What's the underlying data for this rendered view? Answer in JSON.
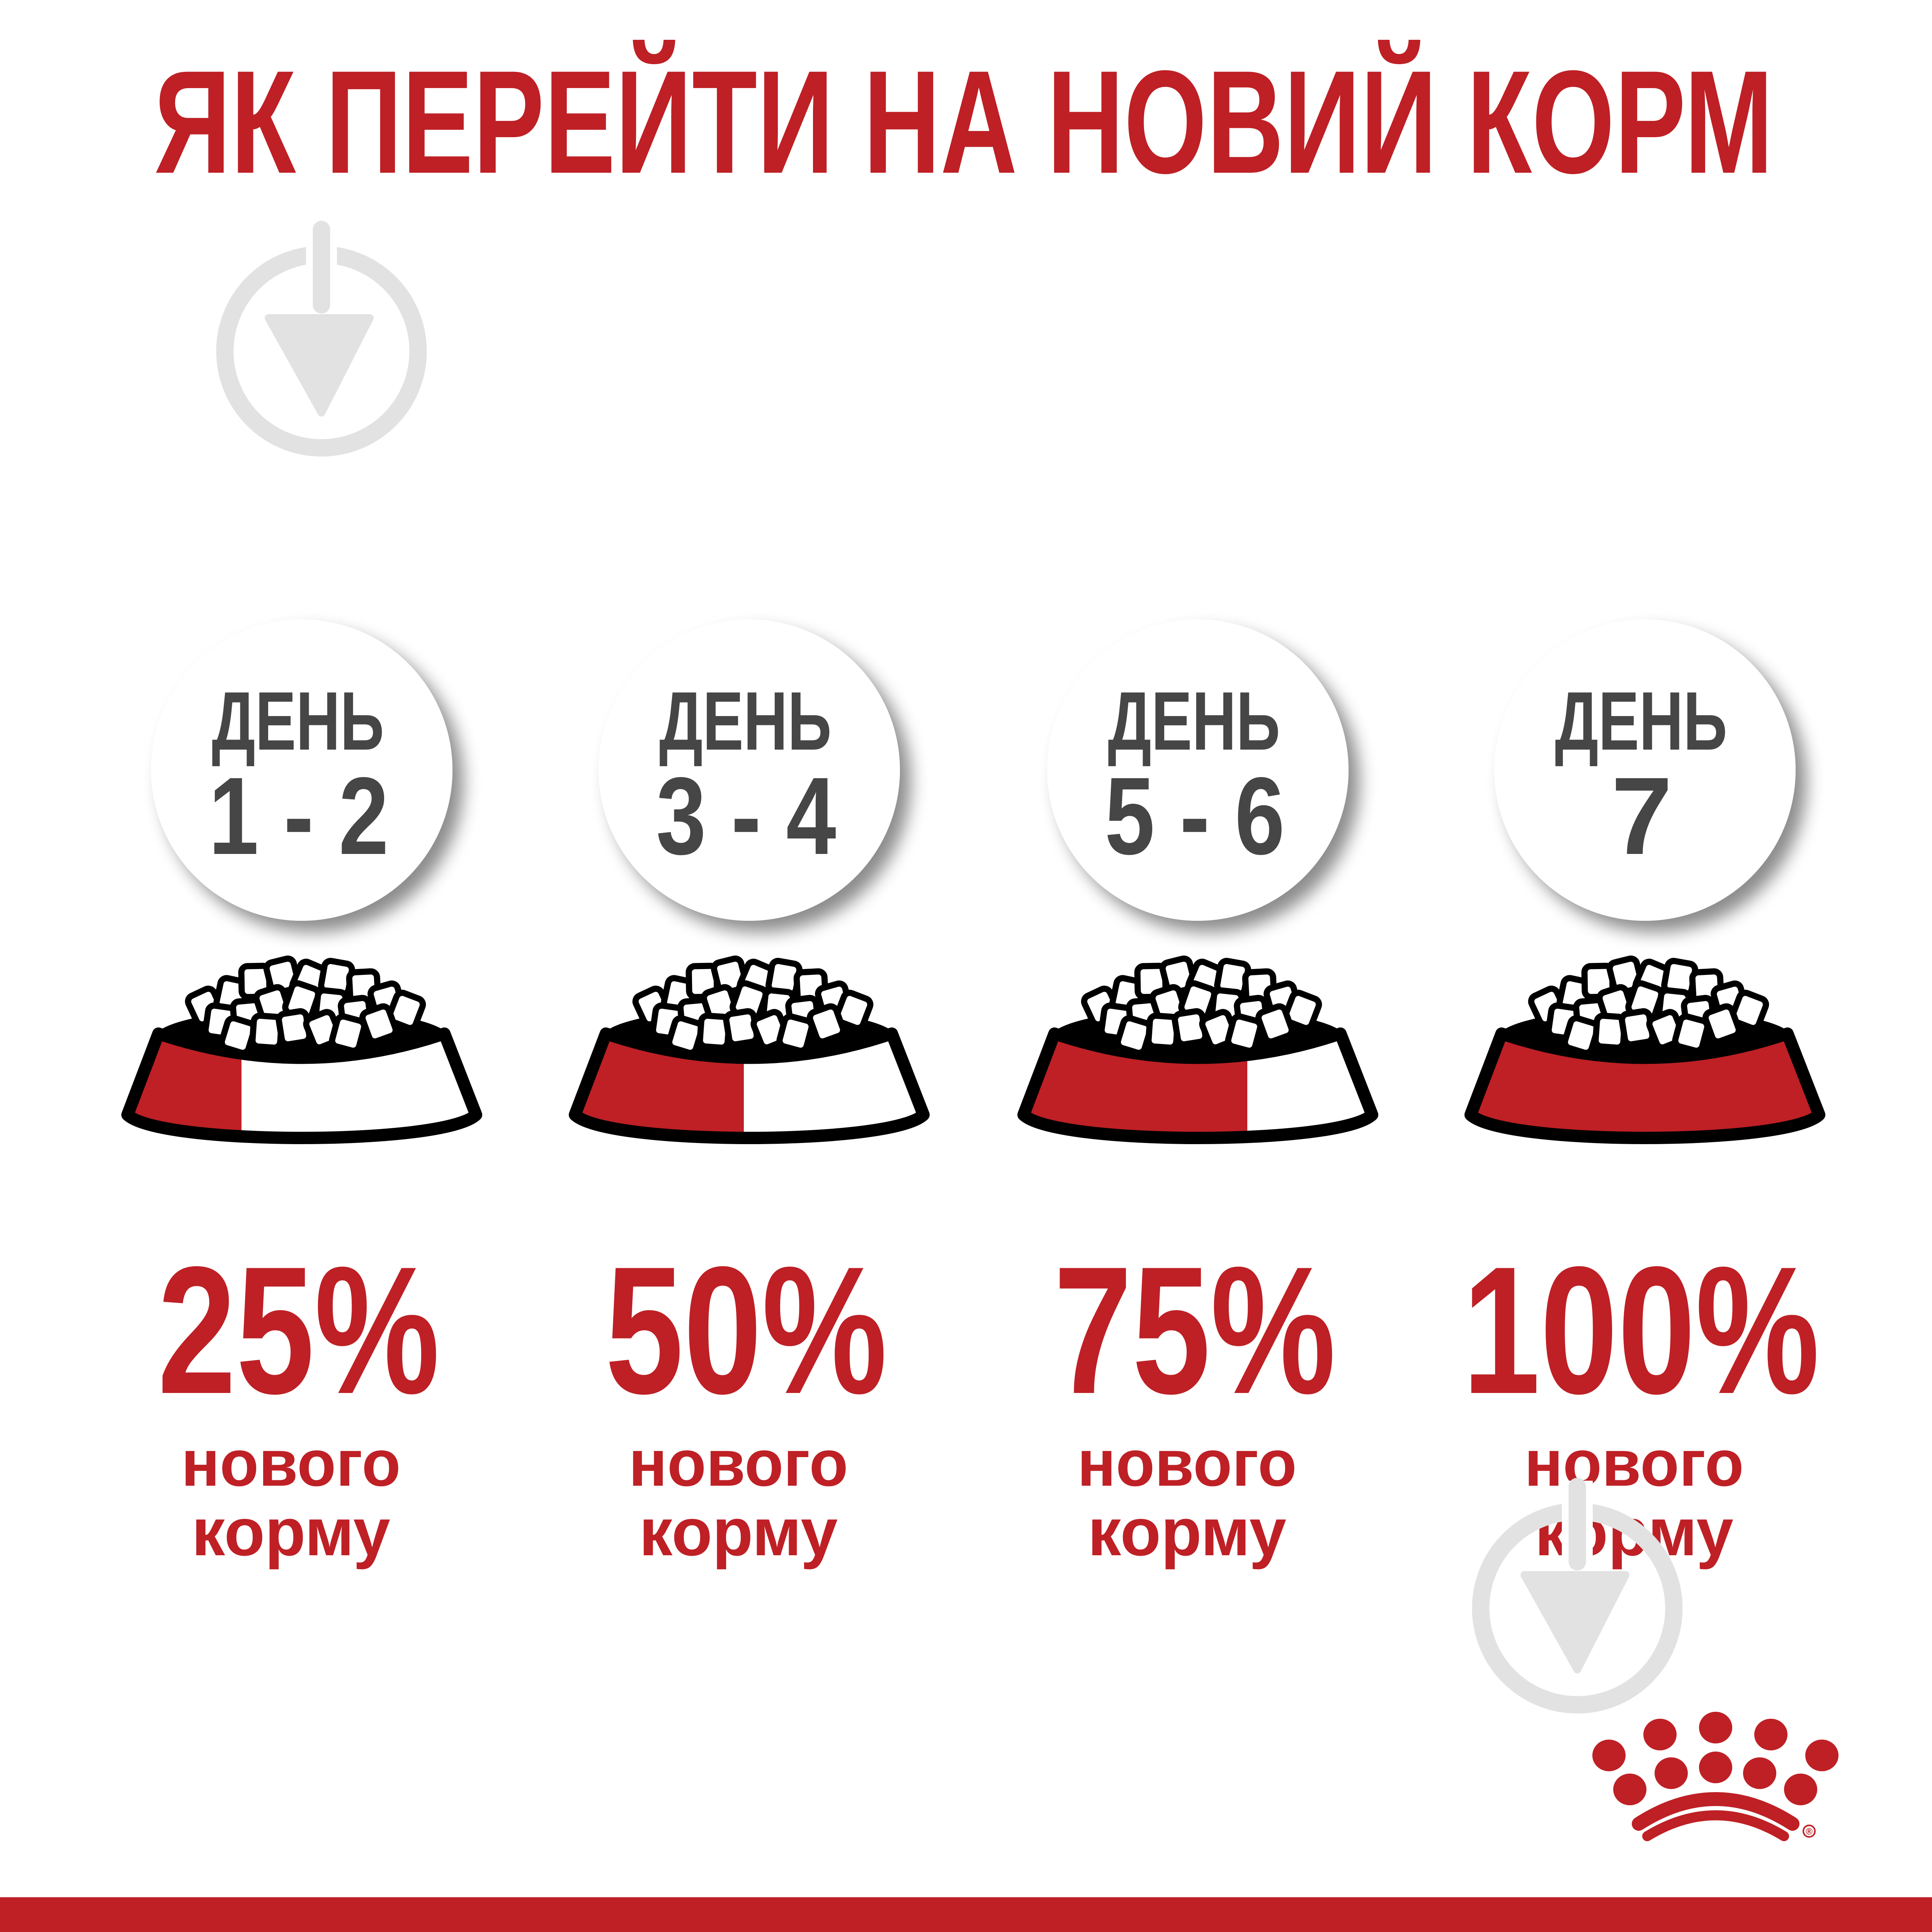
{
  "title": "ЯК ПЕРЕЙТИ НА НОВИЙ КОРМ",
  "steps": [
    {
      "day_label": "ДЕНЬ",
      "days": "1 - 2",
      "percent": "25%",
      "new_fraction": 0.25,
      "line1": "нового",
      "line2": "корму"
    },
    {
      "day_label": "ДЕНЬ",
      "days": "3 - 4",
      "percent": "50%",
      "new_fraction": 0.5,
      "line1": "нового",
      "line2": "корму"
    },
    {
      "day_label": "ДЕНЬ",
      "days": "5 - 6",
      "percent": "75%",
      "new_fraction": 0.75,
      "line1": "нового",
      "line2": "корму"
    },
    {
      "day_label": "ДЕНЬ",
      "days": "7",
      "percent": "100%",
      "new_fraction": 1.0,
      "line1": "нового",
      "line2": "корму"
    }
  ],
  "logo": {
    "registered_mark": "®",
    "name": "crown-paw-logo"
  },
  "colors": {
    "brand_red": "#be2025",
    "dark_text": "#464646",
    "watermark": "#e2e2e2",
    "outline": "#000000"
  }
}
